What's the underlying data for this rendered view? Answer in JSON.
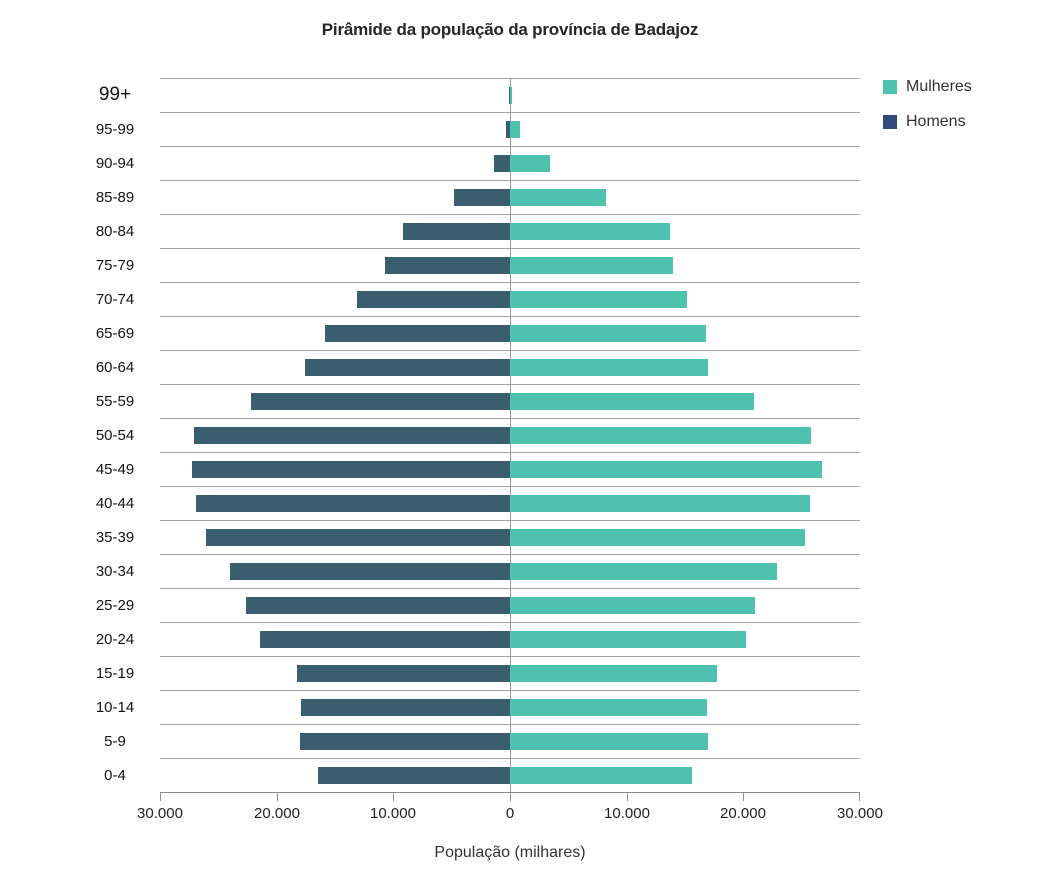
{
  "chart_data": {
    "type": "bar",
    "subtype": "population-pyramid",
    "title": "Pirâmide da população da província de Badajoz",
    "xlabel": "População (milhares)",
    "categories": [
      "99+",
      "95-99",
      "90-94",
      "85-89",
      "80-84",
      "75-79",
      "70-74",
      "65-69",
      "60-64",
      "55-59",
      "50-54",
      "45-49",
      "40-44",
      "35-39",
      "30-34",
      "25-29",
      "20-24",
      "15-19",
      "10-14",
      "5-9",
      "0-4"
    ],
    "series": [
      {
        "name": "Mulheres",
        "side": "right",
        "values": [
          200,
          850,
          3400,
          8200,
          13700,
          14000,
          15200,
          16800,
          17000,
          20900,
          25800,
          26700,
          25700,
          25300,
          22900,
          21000,
          20200,
          17700,
          16900,
          17000,
          15600
        ]
      },
      {
        "name": "Homens",
        "side": "left",
        "values": [
          50,
          350,
          1400,
          4800,
          9200,
          10700,
          13100,
          15900,
          17600,
          22200,
          27100,
          27300,
          26900,
          26100,
          24000,
          22600,
          21400,
          18300,
          17900,
          18000,
          16500
        ]
      }
    ],
    "xlim": [
      -30000,
      30000
    ],
    "x_tick_labels": [
      "30.000",
      "20.000",
      "10.000",
      "0",
      "10.000",
      "20.000",
      "30.000"
    ],
    "grid": "horizontal-row-lines",
    "legend_position": "top-right",
    "colors": {
      "mulheres": "#4FC2AF",
      "homens_bar": "#3B5D70",
      "homens_legend": "#2F4B77",
      "gridline": "#A3A3A3",
      "axis": "#8C8C8C"
    }
  }
}
